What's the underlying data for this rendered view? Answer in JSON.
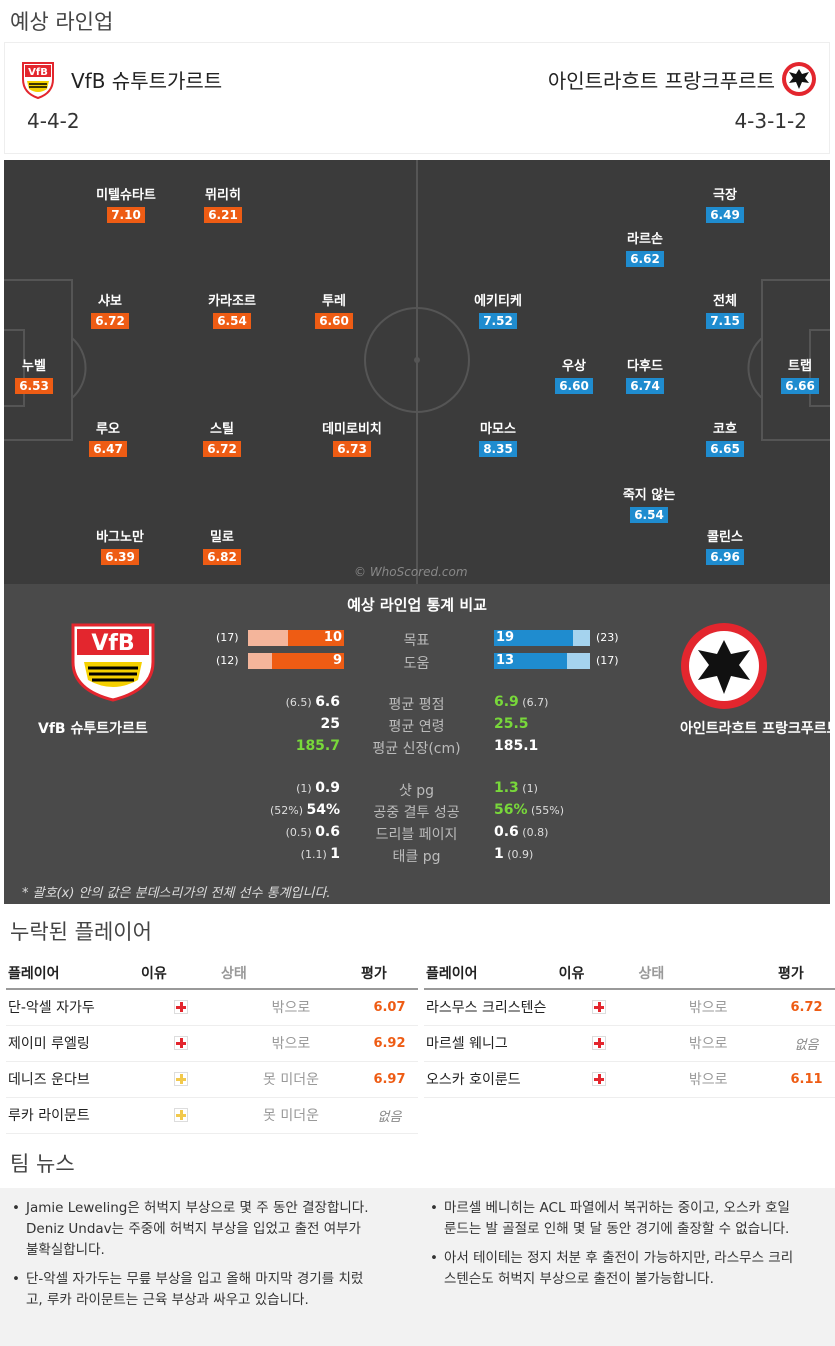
{
  "title": "예상 라인업",
  "home": {
    "name": "VfB 슈투트가르트",
    "formation": "4-4-2",
    "crest_color": "#e3262e",
    "accent": "#ee5c14"
  },
  "away": {
    "name": "아인트라흐트 프랑크푸르트",
    "formation": "4-3-1-2",
    "crest_color": "#e3262e",
    "accent": "#1f8ccf"
  },
  "home_players": [
    {
      "name": "미텔슈타트",
      "rating": "7.10"
    },
    {
      "name": "뮈리히",
      "rating": "6.21"
    },
    {
      "name": "샤보",
      "rating": "6.72"
    },
    {
      "name": "카라조르",
      "rating": "6.54"
    },
    {
      "name": "투레",
      "rating": "6.60"
    },
    {
      "name": "누벨",
      "rating": "6.53"
    },
    {
      "name": "루오",
      "rating": "6.47"
    },
    {
      "name": "스틸",
      "rating": "6.72"
    },
    {
      "name": "데미로비치",
      "rating": "6.73"
    },
    {
      "name": "바그노만",
      "rating": "6.39"
    },
    {
      "name": "밀로",
      "rating": "6.82"
    }
  ],
  "away_players": [
    {
      "name": "극장",
      "rating": "6.49"
    },
    {
      "name": "라르손",
      "rating": "6.62"
    },
    {
      "name": "에키티케",
      "rating": "7.52"
    },
    {
      "name": "전체",
      "rating": "7.15"
    },
    {
      "name": "우상",
      "rating": "6.60"
    },
    {
      "name": "다후드",
      "rating": "6.74"
    },
    {
      "name": "트랩",
      "rating": "6.66"
    },
    {
      "name": "마모스",
      "rating": "8.35"
    },
    {
      "name": "코흐",
      "rating": "6.65"
    },
    {
      "name": "죽지 않는",
      "rating": "6.54"
    },
    {
      "name": "콜린스",
      "rating": "6.96"
    }
  ],
  "watermark": "© WhoScored.com",
  "stats": {
    "title": "예상 라인업 통계 비교",
    "home_team": "VfB 슈투트가르트",
    "away_team": "아인트라흐트 프랑크푸르트",
    "bars": [
      {
        "label": "목표",
        "home": 10,
        "home_total": 17,
        "home_total_text": "(17)",
        "away": 19,
        "away_total": 23,
        "away_total_text": "(23)"
      },
      {
        "label": "도움",
        "home": 9,
        "home_total": 12,
        "home_total_text": "(12)",
        "away": 13,
        "away_total": 17,
        "away_total_text": "(17)"
      }
    ],
    "rows": [
      {
        "label": "평균 평점",
        "home_prev": "(6.5)",
        "home": "6.6",
        "away": "6.9",
        "away_prev": "(6.7)"
      },
      {
        "label": "평균 연령",
        "home_prev": "",
        "home": "25",
        "away": "25.5",
        "away_prev": ""
      },
      {
        "label": "평균 신장(cm)",
        "home_prev": "",
        "home": "185.7",
        "away": "185.1",
        "away_prev": ""
      },
      {
        "label": "샷 pg",
        "home_prev": "(1)",
        "home": "0.9",
        "away": "1.3",
        "away_prev": "(1)"
      },
      {
        "label": "공중 결투 성공",
        "home_prev": "(52%)",
        "home": "54%",
        "away": "56%",
        "away_prev": "(55%)"
      },
      {
        "label": "드리블 페이지",
        "home_prev": "(0.5)",
        "home": "0.6",
        "away": "0.6",
        "away_prev": "(0.8)"
      },
      {
        "label": "태클 pg",
        "home_prev": "(1.1)",
        "home": "1",
        "away": "1",
        "away_prev": "(0.9)"
      }
    ],
    "footnote": "* 괄호(x) 안의 값은 분데스리가의 전체 선수 통계입니다."
  },
  "missing": {
    "title": "누락된 플레이어",
    "headers": {
      "player": "플레이어",
      "reason": "이유",
      "status": "상태",
      "rating": "평가"
    },
    "home": [
      {
        "name": "단-악셀 자가두",
        "reason": "injury",
        "status": "밖으로",
        "rating": "6.07"
      },
      {
        "name": "제이미 루엘링",
        "reason": "injury",
        "status": "밖으로",
        "rating": "6.92"
      },
      {
        "name": "데니즈 운다브",
        "reason": "doubt",
        "status": "못 미더운",
        "rating": "6.97"
      },
      {
        "name": "루카 라이문트",
        "reason": "doubt",
        "status": "못 미더운",
        "rating": "없음"
      }
    ],
    "away": [
      {
        "name": "라스무스 크리스텐슨",
        "reason": "injury",
        "status": "밖으로",
        "rating": "6.72"
      },
      {
        "name": "마르셀 웨니그",
        "reason": "injury",
        "status": "밖으로",
        "rating": "없음"
      },
      {
        "name": "오스카 호이룬드",
        "reason": "injury",
        "status": "밖으로",
        "rating": "6.11"
      }
    ]
  },
  "news": {
    "title": "팀 뉴스",
    "home": [
      "Jamie Leweling은 허벅지 부상으로 몇 주 동안 결장합니다. Deniz Undav는 주중에 허벅지 부상을 입었고 출전 여부가 불확실합니다.",
      "단-악셀 자가두는 무릎 부상을 입고 올해 마지막 경기를 치렀고, 루카 라이문트는 근육 부상과 싸우고 있습니다."
    ],
    "away": [
      "마르셀 베니히는 ACL 파열에서 복귀하는 중이고, 오스카 호일룬드는 발 골절로 인해 몇 달 동안 경기에 출장할 수 없습니다.",
      "아서 테이테는 정지 처분 후 출전이 가능하지만, 라스무스 크리스텐슨도 허벅지 부상으로 출전이 불가능합니다."
    ]
  }
}
